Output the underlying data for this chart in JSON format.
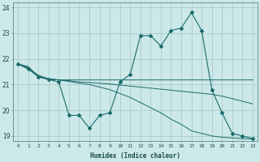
{
  "xlabel": "Humidex (Indice chaleur)",
  "bg_color": "#cce8e8",
  "grid_color": "#aacccc",
  "line_color": "#1a6b6b",
  "x_values": [
    0,
    1,
    2,
    3,
    4,
    5,
    6,
    7,
    8,
    9,
    10,
    11,
    12,
    13,
    14,
    15,
    16,
    17,
    18,
    19,
    20,
    21,
    22,
    23
  ],
  "main_y": [
    21.8,
    21.6,
    21.3,
    21.2,
    21.1,
    19.8,
    19.8,
    19.3,
    19.8,
    19.9,
    21.1,
    21.4,
    22.9,
    22.9,
    22.5,
    23.1,
    23.2,
    23.8,
    23.1,
    20.8,
    19.9,
    19.1,
    19.0,
    18.9
  ],
  "line1_y": [
    21.8,
    21.7,
    21.3,
    21.2,
    21.18,
    21.18,
    21.18,
    21.18,
    21.18,
    21.18,
    21.18,
    21.18,
    21.18,
    21.18,
    21.18,
    21.18,
    21.18,
    21.18,
    21.18,
    21.18,
    21.18,
    21.18,
    21.18,
    21.18
  ],
  "line2_y": [
    21.8,
    21.65,
    21.35,
    21.22,
    21.18,
    21.15,
    21.1,
    21.08,
    21.05,
    21.02,
    20.98,
    20.94,
    20.9,
    20.86,
    20.82,
    20.78,
    20.74,
    20.7,
    20.66,
    20.62,
    20.55,
    20.45,
    20.35,
    20.25
  ],
  "line3_y": [
    21.8,
    21.65,
    21.35,
    21.22,
    21.18,
    21.12,
    21.05,
    21.0,
    20.9,
    20.8,
    20.65,
    20.5,
    20.3,
    20.1,
    19.9,
    19.65,
    19.45,
    19.2,
    19.1,
    19.0,
    18.95,
    18.92,
    18.9,
    18.88
  ],
  "ylim": [
    18.8,
    24.2
  ],
  "yticks": [
    19,
    20,
    21,
    22,
    23,
    24
  ]
}
